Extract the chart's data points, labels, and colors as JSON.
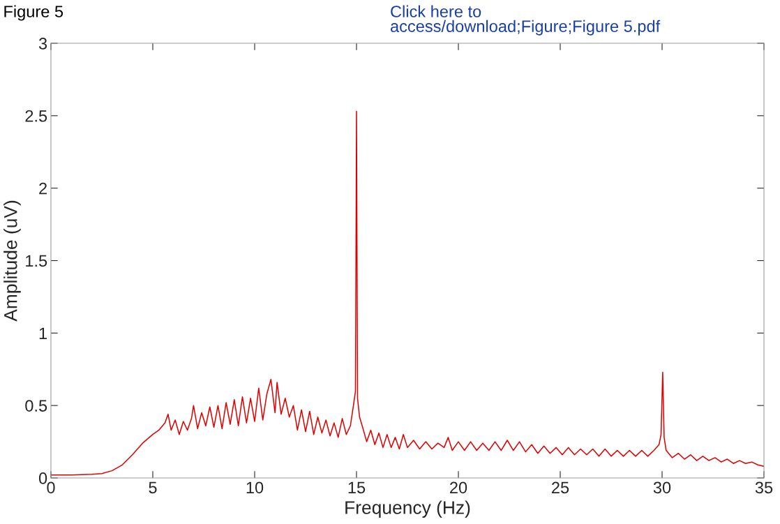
{
  "chart_data": {
    "type": "line",
    "xlabel": "Frequency (Hz)",
    "ylabel": "Amplitude (uV)",
    "annotations": [
      "Figure 5",
      "Click here to\naccess/download;Figure;Figure 5.pdf"
    ],
    "xlim": [
      0,
      35
    ],
    "ylim": [
      0,
      3
    ],
    "xticks": [
      0,
      5,
      10,
      15,
      20,
      25,
      30,
      35
    ],
    "yticks": [
      0,
      0.5,
      1,
      1.5,
      2,
      2.5,
      3
    ],
    "grid": false,
    "marker": "none",
    "line_style": "solid",
    "series": [
      {
        "color": "#e00000",
        "x": [
          0,
          1,
          2,
          2.5,
          3,
          3.5,
          4,
          4.5,
          5,
          5.3,
          5.6,
          5.75,
          5.9,
          6.1,
          6.3,
          6.5,
          6.7,
          6.9,
          7.0,
          7.2,
          7.4,
          7.6,
          7.8,
          8.0,
          8.2,
          8.4,
          8.6,
          8.8,
          9.0,
          9.2,
          9.4,
          9.6,
          9.8,
          10.0,
          10.2,
          10.4,
          10.6,
          10.8,
          11.0,
          11.1,
          11.3,
          11.5,
          11.7,
          11.9,
          12.1,
          12.3,
          12.5,
          12.7,
          12.9,
          13.1,
          13.3,
          13.5,
          13.7,
          13.9,
          14.1,
          14.3,
          14.5,
          14.7,
          14.85,
          14.95,
          15.0,
          15.05,
          15.15,
          15.3,
          15.5,
          15.7,
          15.9,
          16.1,
          16.3,
          16.5,
          16.7,
          16.9,
          17.1,
          17.3,
          17.5,
          17.8,
          18.1,
          18.4,
          18.7,
          19.0,
          19.3,
          19.5,
          19.7,
          20.0,
          20.3,
          20.6,
          20.9,
          21.2,
          21.5,
          21.8,
          22.1,
          22.4,
          22.7,
          23.0,
          23.3,
          23.6,
          23.9,
          24.2,
          24.5,
          24.8,
          25.1,
          25.4,
          25.7,
          26.0,
          26.3,
          26.6,
          26.9,
          27.2,
          27.5,
          27.8,
          28.1,
          28.4,
          28.7,
          29.0,
          29.3,
          29.6,
          29.85,
          29.95,
          30.03,
          30.1,
          30.2,
          30.5,
          30.8,
          31.1,
          31.4,
          31.7,
          32.0,
          32.3,
          32.6,
          32.9,
          33.2,
          33.5,
          33.8,
          34.1,
          34.4,
          34.7,
          35
        ],
        "values": [
          0.02,
          0.02,
          0.025,
          0.03,
          0.05,
          0.09,
          0.16,
          0.24,
          0.3,
          0.33,
          0.38,
          0.44,
          0.33,
          0.4,
          0.3,
          0.39,
          0.33,
          0.41,
          0.5,
          0.34,
          0.45,
          0.36,
          0.49,
          0.35,
          0.5,
          0.34,
          0.52,
          0.37,
          0.54,
          0.36,
          0.56,
          0.38,
          0.55,
          0.39,
          0.62,
          0.4,
          0.58,
          0.68,
          0.45,
          0.66,
          0.44,
          0.55,
          0.42,
          0.5,
          0.33,
          0.47,
          0.32,
          0.46,
          0.3,
          0.42,
          0.31,
          0.4,
          0.29,
          0.38,
          0.28,
          0.41,
          0.3,
          0.36,
          0.5,
          0.6,
          2.53,
          0.55,
          0.42,
          0.35,
          0.25,
          0.33,
          0.23,
          0.31,
          0.21,
          0.3,
          0.21,
          0.28,
          0.2,
          0.3,
          0.21,
          0.26,
          0.2,
          0.25,
          0.2,
          0.24,
          0.21,
          0.28,
          0.19,
          0.25,
          0.19,
          0.25,
          0.19,
          0.24,
          0.19,
          0.25,
          0.19,
          0.26,
          0.19,
          0.25,
          0.18,
          0.23,
          0.17,
          0.22,
          0.17,
          0.21,
          0.16,
          0.21,
          0.16,
          0.2,
          0.16,
          0.2,
          0.15,
          0.2,
          0.15,
          0.19,
          0.15,
          0.19,
          0.15,
          0.19,
          0.15,
          0.19,
          0.23,
          0.3,
          0.73,
          0.28,
          0.19,
          0.14,
          0.17,
          0.13,
          0.16,
          0.12,
          0.15,
          0.12,
          0.14,
          0.11,
          0.13,
          0.1,
          0.12,
          0.1,
          0.11,
          0.09,
          0.08
        ]
      }
    ]
  }
}
